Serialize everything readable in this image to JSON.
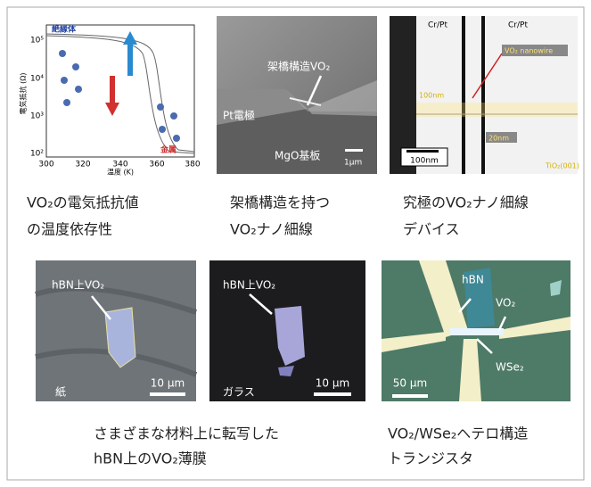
{
  "panels": [
    {
      "image_labels": {
        "insulator": "絶縁体",
        "metal": "金属",
        "x_axis": "温度 (K)",
        "y_axis": "電気抵抗 (Ω)",
        "x_ticks": [
          "300",
          "320",
          "340",
          "360",
          "380"
        ],
        "y_ticks": [
          "10⁵",
          "10⁴",
          "10³",
          "10²"
        ]
      },
      "caption": [
        "VO₂の電気抵抗値",
        "の温度依存性"
      ]
    },
    {
      "image_labels": {
        "structure": "架橋構造VO₂",
        "electrode": "Pt電極",
        "substrate": "MgO基板",
        "scale": "1μm"
      },
      "caption": [
        "架橋構造を持つ",
        "VO₂ナノ細線"
      ]
    },
    {
      "image_labels": {
        "left_electrode": "Cr/Pt",
        "right_electrode": "Cr/Pt",
        "wire": "VO₂ nanowire",
        "width": "100nm",
        "gap": "20nm",
        "scale": "100nm",
        "substrate": "TiO₂(001)"
      },
      "caption": [
        "究極のVO₂ナノ細線",
        "デバイス"
      ]
    },
    {
      "image_labels": {
        "film": "hBN上VO₂",
        "material": "紙",
        "scale": "10 μm"
      }
    },
    {
      "image_labels": {
        "film": "hBN上VO₂",
        "material": "ガラス",
        "scale": "10 μm"
      }
    },
    {
      "image_labels": {
        "hbn": "hBN",
        "vo2": "VO₂",
        "wse2": "WSe₂",
        "scale": "50 μm"
      },
      "caption": [
        "VO₂/WSe₂ヘテロ構造",
        "トランジスタ"
      ]
    }
  ],
  "shared_caption": [
    "さまざまな材料上に転写した",
    "hBN上のVO₂薄膜"
  ]
}
